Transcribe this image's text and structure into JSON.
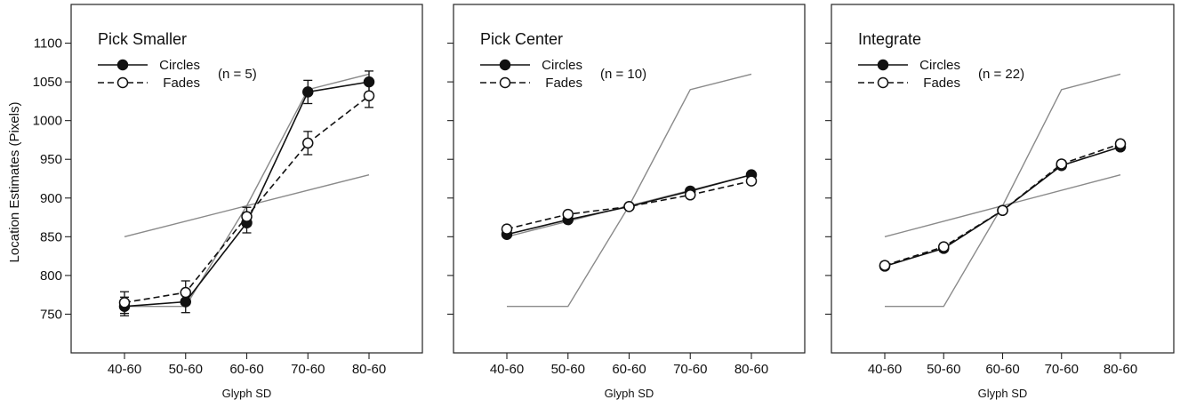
{
  "figure": {
    "ylabel": "Location Estimates (Pixels)"
  },
  "chart_data": [
    {
      "type": "line",
      "title": "Pick Smaller",
      "n_label": "(n = 5)",
      "xlabel": "Glyph SD",
      "ylabel": "Location Estimates (Pixels)",
      "categories": [
        "40-60",
        "50-60",
        "60-60",
        "70-60",
        "80-60"
      ],
      "yticks": [
        750,
        800,
        850,
        900,
        950,
        1000,
        1050,
        1100
      ],
      "show_yticks": true,
      "ylim": [
        700,
        1150
      ],
      "legend_position": "top-left",
      "series": [
        {
          "name": "Circles",
          "marker": "filled-circle",
          "line": "solid",
          "values": [
            760,
            766,
            868,
            1037,
            1050
          ],
          "errors": [
            12,
            14,
            13,
            15,
            14
          ]
        },
        {
          "name": "Fades",
          "marker": "open-circle",
          "line": "dashed",
          "values": [
            765,
            778,
            876,
            971,
            1032
          ],
          "errors": [
            14,
            15,
            12,
            15,
            15
          ]
        }
      ],
      "reference_lines": [
        {
          "x": [
            0,
            4
          ],
          "y": [
            850,
            930
          ],
          "color": "#8a8a8a"
        },
        {
          "x": [
            0,
            1,
            2,
            3,
            4
          ],
          "y": [
            760,
            760,
            890,
            1040,
            1060
          ],
          "color": "#8a8a8a"
        }
      ]
    },
    {
      "type": "line",
      "title": "Pick Center",
      "n_label": "(n = 10)",
      "xlabel": "Glyph SD",
      "categories": [
        "40-60",
        "50-60",
        "60-60",
        "70-60",
        "80-60"
      ],
      "yticks": [
        750,
        800,
        850,
        900,
        950,
        1000,
        1050,
        1100
      ],
      "show_yticks": false,
      "ylim": [
        700,
        1150
      ],
      "legend_position": "top-left",
      "series": [
        {
          "name": "Circles",
          "marker": "filled-circle",
          "line": "solid",
          "values": [
            853,
            872,
            889,
            909,
            930
          ],
          "errors": [
            3,
            3,
            3,
            3,
            3
          ]
        },
        {
          "name": "Fades",
          "marker": "open-circle",
          "line": "dashed",
          "values": [
            860,
            879,
            889,
            904,
            922
          ],
          "errors": [
            3,
            3,
            3,
            3,
            3
          ]
        }
      ],
      "reference_lines": [
        {
          "x": [
            0,
            4
          ],
          "y": [
            850,
            930
          ],
          "color": "#8a8a8a"
        },
        {
          "x": [
            0,
            1,
            2,
            3,
            4
          ],
          "y": [
            760,
            760,
            890,
            1040,
            1060
          ],
          "color": "#8a8a8a"
        }
      ]
    },
    {
      "type": "line",
      "title": "Integrate",
      "n_label": "(n = 22)",
      "xlabel": "Glyph SD",
      "categories": [
        "40-60",
        "50-60",
        "60-60",
        "70-60",
        "80-60"
      ],
      "yticks": [
        750,
        800,
        850,
        900,
        950,
        1000,
        1050,
        1100
      ],
      "show_yticks": false,
      "ylim": [
        700,
        1150
      ],
      "legend_position": "top-left",
      "series": [
        {
          "name": "Circles",
          "marker": "filled-circle",
          "line": "solid",
          "values": [
            812,
            835,
            884,
            942,
            966
          ],
          "errors": [
            4,
            4,
            4,
            4,
            4
          ]
        },
        {
          "name": "Fades",
          "marker": "open-circle",
          "line": "dashed",
          "values": [
            813,
            837,
            884,
            944,
            970
          ],
          "errors": [
            4,
            4,
            4,
            4,
            4
          ]
        }
      ],
      "reference_lines": [
        {
          "x": [
            0,
            4
          ],
          "y": [
            850,
            930
          ],
          "color": "#8a8a8a"
        },
        {
          "x": [
            0,
            1,
            2,
            3,
            4
          ],
          "y": [
            760,
            760,
            890,
            1040,
            1060
          ],
          "color": "#8a8a8a"
        }
      ]
    }
  ]
}
